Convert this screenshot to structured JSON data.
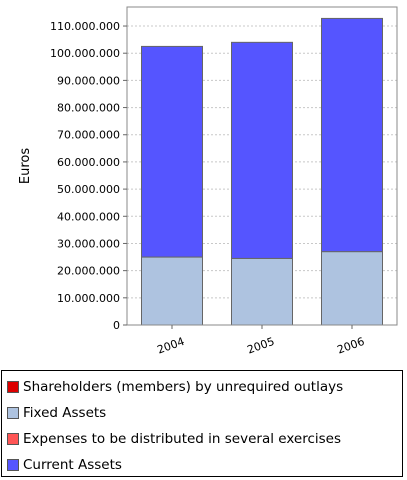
{
  "chart_data": {
    "type": "bar",
    "stacked": true,
    "ylabel": "Euros",
    "ylim": [
      0,
      117000000
    ],
    "y_ticks": [
      0,
      10000000,
      20000000,
      30000000,
      40000000,
      50000000,
      60000000,
      70000000,
      80000000,
      90000000,
      100000000,
      110000000
    ],
    "y_tick_labels": [
      "0",
      "10.000.000",
      "20.000.000",
      "30.000.000",
      "40.000.000",
      "50.000.000",
      "60.000.000",
      "70.000.000",
      "80.000.000",
      "90.000.000",
      "100.000.000",
      "110.000.000"
    ],
    "grid": true,
    "legend_position": "bottom",
    "categories": [
      "2004",
      "2005",
      "2006"
    ],
    "series": [
      {
        "name": "Shareholders (members) by unrequired outlays",
        "color": "#dd0000",
        "values": [
          0,
          0,
          0
        ]
      },
      {
        "name": "Fixed Assets",
        "color": "#aec3e0",
        "values": [
          25000000,
          24500000,
          27000000
        ]
      },
      {
        "name": "Expenses to be distributed in several exercises",
        "color": "#ff5555",
        "values": [
          0,
          0,
          0
        ]
      },
      {
        "name": "Current Assets",
        "color": "#5555ff",
        "values": [
          77500000,
          79500000,
          85800000
        ]
      }
    ]
  }
}
